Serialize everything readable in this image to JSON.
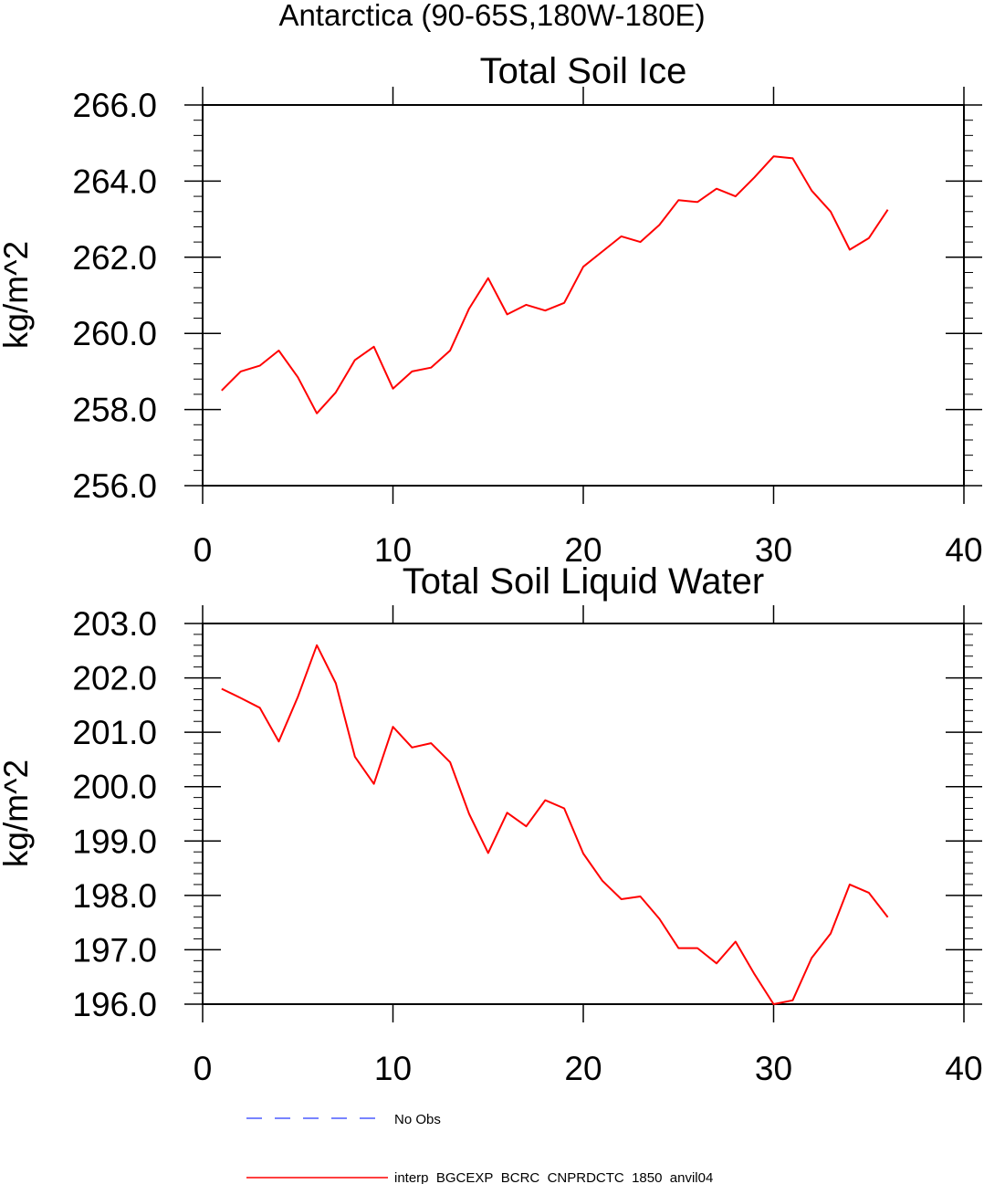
{
  "supertitle": "Antarctica (90-65S,180W-180E)",
  "chart_data": [
    {
      "type": "line",
      "title": "Total Soil Ice",
      "xlabel": "",
      "ylabel": "kg/m^2",
      "xlim": [
        0,
        40
      ],
      "ylim": [
        256,
        266
      ],
      "xticks": [
        0,
        10,
        20,
        30,
        40
      ],
      "xtick_labels": [
        "0",
        "10",
        "20",
        "30",
        "40"
      ],
      "yticks": [
        256,
        258,
        260,
        262,
        264,
        266
      ],
      "ytick_labels": [
        "256.0",
        "258.0",
        "260.0",
        "262.0",
        "264.0",
        "266.0"
      ],
      "grid": false,
      "series": [
        {
          "name": "interp_BGCEXP_BCRC_CNPRDCTC_1850_anvil04",
          "color": "#ff0000",
          "x": [
            1,
            2,
            3,
            4,
            5,
            6,
            7,
            8,
            9,
            10,
            11,
            12,
            13,
            14,
            15,
            16,
            17,
            18,
            19,
            20,
            21,
            22,
            23,
            24,
            25,
            26,
            27,
            28,
            29,
            30,
            31,
            32,
            33,
            34,
            35,
            36
          ],
          "values": [
            258.5,
            259.0,
            259.15,
            259.55,
            258.85,
            257.9,
            258.45,
            259.3,
            259.65,
            258.55,
            259.0,
            259.1,
            259.55,
            260.65,
            261.45,
            260.5,
            260.75,
            260.6,
            260.8,
            261.75,
            262.15,
            262.55,
            262.4,
            262.85,
            263.5,
            263.45,
            263.8,
            263.6,
            264.1,
            264.65,
            264.6,
            263.75,
            263.2,
            262.2,
            262.5,
            263.25
          ]
        }
      ]
    },
    {
      "type": "line",
      "title": "Total Soil Liquid Water",
      "xlabel": "",
      "ylabel": "kg/m^2",
      "xlim": [
        0,
        40
      ],
      "ylim": [
        196,
        203
      ],
      "xticks": [
        0,
        10,
        20,
        30,
        40
      ],
      "xtick_labels": [
        "0",
        "10",
        "20",
        "30",
        "40"
      ],
      "yticks": [
        196,
        197,
        198,
        199,
        200,
        201,
        202,
        203
      ],
      "ytick_labels": [
        "196.0",
        "197.0",
        "198.0",
        "199.0",
        "200.0",
        "201.0",
        "202.0",
        "203.0"
      ],
      "grid": false,
      "series": [
        {
          "name": "interp_BGCEXP_BCRC_CNPRDCTC_1850_anvil04",
          "color": "#ff0000",
          "x": [
            1,
            2,
            3,
            4,
            5,
            6,
            7,
            8,
            9,
            10,
            11,
            12,
            13,
            14,
            15,
            16,
            17,
            18,
            19,
            20,
            21,
            22,
            23,
            24,
            25,
            26,
            27,
            28,
            29,
            30,
            31,
            32,
            33,
            34,
            35,
            36
          ],
          "values": [
            201.8,
            201.63,
            201.45,
            200.83,
            201.65,
            202.6,
            201.9,
            200.55,
            200.05,
            201.1,
            200.72,
            200.8,
            200.45,
            199.5,
            198.78,
            199.52,
            199.27,
            199.75,
            199.6,
            198.77,
            198.27,
            197.93,
            197.98,
            197.57,
            197.03,
            197.03,
            196.75,
            197.15,
            196.55,
            196.0,
            196.07,
            196.85,
            197.3,
            198.2,
            198.05,
            197.6
          ]
        }
      ]
    }
  ],
  "legend": {
    "placement": "bottom",
    "entries": [
      {
        "label": "No Obs",
        "color": "#4c5cff",
        "style": "dashed"
      },
      {
        "label": "interp_BGCEXP_BCRC_CNPRDCTC_1850_anvil04",
        "color": "#ff0000",
        "style": "solid"
      }
    ]
  }
}
